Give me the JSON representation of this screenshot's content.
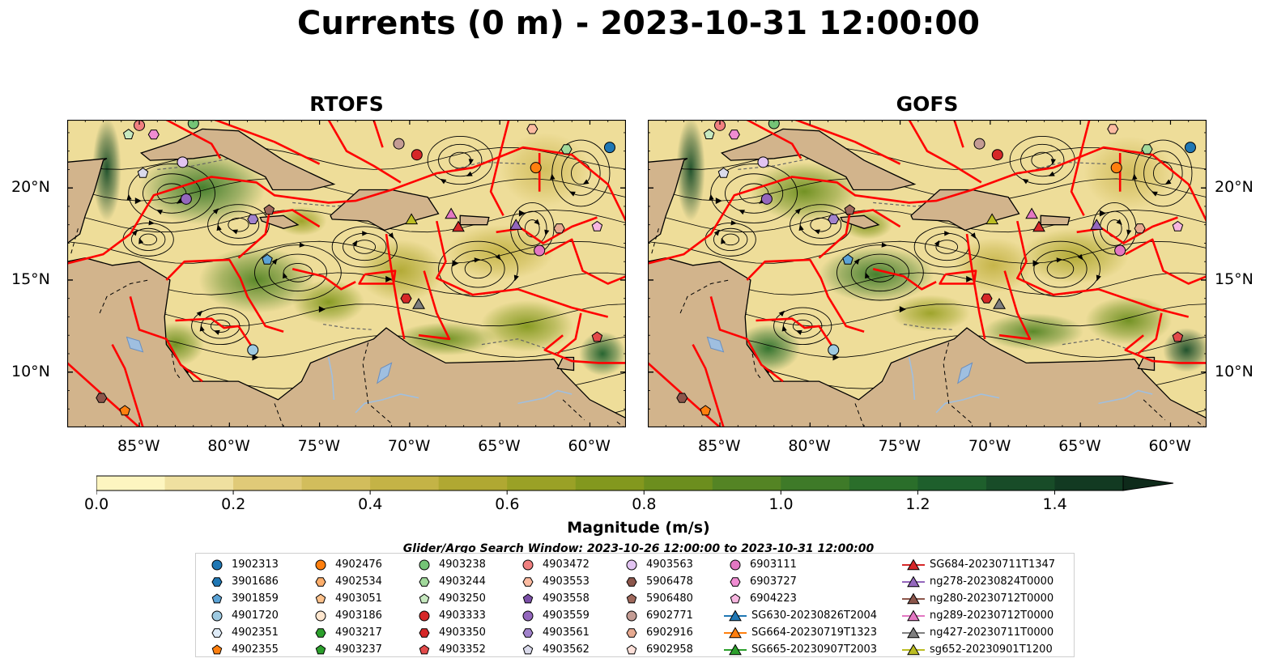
{
  "title": "Currents (0 m) - 2023-10-31 12:00:00",
  "panels": [
    {
      "title": "RTOFS"
    },
    {
      "title": "GOFS"
    }
  ],
  "axes": {
    "x_ticks": [
      "85°W",
      "80°W",
      "75°W",
      "70°W",
      "65°W",
      "60°W"
    ],
    "x_values": [
      -85,
      -80,
      -75,
      -70,
      -65,
      -60
    ],
    "y_ticks": [
      "20°N",
      "15°N",
      "10°N"
    ],
    "y_values": [
      20,
      15,
      10
    ],
    "xlim": [
      -89,
      -58
    ],
    "ylim": [
      7,
      23.7
    ]
  },
  "colorbar": {
    "label": "Magnitude (m/s)",
    "ticks": [
      "0.0",
      "0.2",
      "0.4",
      "0.6",
      "0.8",
      "1.0",
      "1.2",
      "1.4"
    ],
    "tick_values": [
      0.0,
      0.2,
      0.4,
      0.6,
      0.8,
      1.0,
      1.2,
      1.4
    ],
    "range": [
      0.0,
      1.5
    ],
    "extend": "max",
    "colors": [
      "#fdf5c0",
      "#efe0a0",
      "#e0ca78",
      "#d2bd5c",
      "#c4b346",
      "#b0a832",
      "#9aa126",
      "#83981e",
      "#6c8e1e",
      "#548424",
      "#3e7a28",
      "#2a6e2a",
      "#1e5f2c",
      "#184c28",
      "#123a22",
      "#0e2a1a"
    ]
  },
  "search_window": "Glider/Argo Search Window: 2023-10-26 12:00:00 to 2023-10-31 12:00:00",
  "chart_data": {
    "type": "map",
    "variable": "Currents (0 m)",
    "units": "m/s",
    "legend": [
      {
        "name": "1902313",
        "marker": "circle",
        "color": "#1f77b4"
      },
      {
        "name": "3901686",
        "marker": "hexagon",
        "color": "#1f77b4"
      },
      {
        "name": "3901859",
        "marker": "pentagon",
        "color": "#5ba3d6"
      },
      {
        "name": "4901720",
        "marker": "circle",
        "color": "#9ecae1"
      },
      {
        "name": "4902351",
        "marker": "hexagon",
        "color": "#deebf7"
      },
      {
        "name": "4902355",
        "marker": "pentagon",
        "color": "#ff7f0e"
      },
      {
        "name": "4902476",
        "marker": "circle",
        "color": "#ff7f0e"
      },
      {
        "name": "4902534",
        "marker": "hexagon",
        "color": "#fdae6b"
      },
      {
        "name": "4903051",
        "marker": "pentagon",
        "color": "#fdc28c"
      },
      {
        "name": "4903186",
        "marker": "circle",
        "color": "#fee6ce"
      },
      {
        "name": "4903217",
        "marker": "hexagon",
        "color": "#2ca02c"
      },
      {
        "name": "4903237",
        "marker": "pentagon",
        "color": "#2ca02c"
      },
      {
        "name": "4903238",
        "marker": "circle",
        "color": "#74c476"
      },
      {
        "name": "4903244",
        "marker": "hexagon",
        "color": "#a1d99b"
      },
      {
        "name": "4903250",
        "marker": "pentagon",
        "color": "#c7e9c0"
      },
      {
        "name": "4903333",
        "marker": "circle",
        "color": "#d62728"
      },
      {
        "name": "4903350",
        "marker": "hexagon",
        "color": "#d62728"
      },
      {
        "name": "4903352",
        "marker": "pentagon",
        "color": "#e34a4a"
      },
      {
        "name": "4903472",
        "marker": "circle",
        "color": "#f08080"
      },
      {
        "name": "4903553",
        "marker": "hexagon",
        "color": "#fcbba1"
      },
      {
        "name": "4903558",
        "marker": "pentagon",
        "color": "#7b4fa8"
      },
      {
        "name": "4903559",
        "marker": "circle",
        "color": "#9467bd"
      },
      {
        "name": "4903561",
        "marker": "hexagon",
        "color": "#a182cc"
      },
      {
        "name": "4903562",
        "marker": "pentagon",
        "color": "#dadaeb"
      },
      {
        "name": "4903563",
        "marker": "circle",
        "color": "#e2c4f2"
      },
      {
        "name": "5906478",
        "marker": "hexagon",
        "color": "#8c564b"
      },
      {
        "name": "5906480",
        "marker": "pentagon",
        "color": "#a0695c"
      },
      {
        "name": "6902771",
        "marker": "circle",
        "color": "#c49c94"
      },
      {
        "name": "6902916",
        "marker": "hexagon",
        "color": "#e6a990"
      },
      {
        "name": "6902958",
        "marker": "pentagon",
        "color": "#fde0d9"
      },
      {
        "name": "6903111",
        "marker": "circle",
        "color": "#e377c2"
      },
      {
        "name": "6903727",
        "marker": "hexagon",
        "color": "#f08cd2"
      },
      {
        "name": "6904223",
        "marker": "pentagon",
        "color": "#f7b6e0"
      },
      {
        "name": "SG630-20230826T2004",
        "marker": "triangle",
        "color": "#1f77b4"
      },
      {
        "name": "SG664-20230719T1323",
        "marker": "triangle",
        "color": "#ff7f0e"
      },
      {
        "name": "SG665-20230907T2003",
        "marker": "triangle",
        "color": "#2ca02c"
      },
      {
        "name": "SG684-20230711T1347",
        "marker": "triangle",
        "color": "#d62728"
      },
      {
        "name": "ng278-20230824T0000",
        "marker": "triangle",
        "color": "#9467bd"
      },
      {
        "name": "ng280-20230712T0000",
        "marker": "triangle",
        "color": "#8c564b"
      },
      {
        "name": "ng289-20230712T0000",
        "marker": "triangle",
        "color": "#e377c2"
      },
      {
        "name": "ng427-20230711T0000",
        "marker": "triangle",
        "color": "#7f7f7f"
      },
      {
        "name": "sg652-20230901T1200",
        "marker": "triangle",
        "color": "#bcbd22"
      }
    ],
    "platform_positions": [
      {
        "id": "1902313",
        "lon": -58.9,
        "lat": 22.2
      },
      {
        "id": "4902476",
        "lon": -63.0,
        "lat": 21.1
      },
      {
        "id": "4903238",
        "lon": -82.0,
        "lat": 23.5
      },
      {
        "id": "4903244",
        "lon": -61.3,
        "lat": 22.1
      },
      {
        "id": "4903250",
        "lon": -85.6,
        "lat": 22.9
      },
      {
        "id": "4903333",
        "lon": -69.6,
        "lat": 21.8
      },
      {
        "id": "4903472",
        "lon": -85.0,
        "lat": 23.4
      },
      {
        "id": "4903553",
        "lon": -63.2,
        "lat": 23.2
      },
      {
        "id": "4903562",
        "lon": -84.8,
        "lat": 20.8
      },
      {
        "id": "4903563",
        "lon": -82.6,
        "lat": 21.4
      },
      {
        "id": "4903559",
        "lon": -82.4,
        "lat": 19.4
      },
      {
        "id": "4903561",
        "lon": -78.7,
        "lat": 18.3
      },
      {
        "id": "5906480",
        "lon": -77.8,
        "lat": 18.8
      },
      {
        "id": "6902771",
        "lon": -70.6,
        "lat": 22.4
      },
      {
        "id": "6902916",
        "lon": -61.7,
        "lat": 17.8
      },
      {
        "id": "6903727",
        "lon": -84.2,
        "lat": 22.9
      },
      {
        "id": "6904223",
        "lon": -59.6,
        "lat": 17.9
      },
      {
        "id": "3901859",
        "lon": -77.9,
        "lat": 16.1
      },
      {
        "id": "4903350",
        "lon": -70.2,
        "lat": 14.0
      },
      {
        "id": "6903111",
        "lon": -62.8,
        "lat": 16.6
      },
      {
        "id": "4901720",
        "lon": -78.7,
        "lat": 11.2
      },
      {
        "id": "4902355",
        "lon": -85.8,
        "lat": 7.9
      },
      {
        "id": "5906478",
        "lon": -87.1,
        "lat": 8.6
      },
      {
        "id": "4903352",
        "lon": -59.6,
        "lat": 11.9
      },
      {
        "id": "ng289-20230712T0000",
        "lon": -67.7,
        "lat": 18.6
      },
      {
        "id": "SG684-20230711T1347",
        "lon": -67.3,
        "lat": 17.9
      },
      {
        "id": "ng278-20230824T0000",
        "lon": -64.1,
        "lat": 18.0
      },
      {
        "id": "sg652-20230901T1200",
        "lon": -69.9,
        "lat": 18.3
      },
      {
        "id": "ng427-20230711T0000",
        "lon": -69.5,
        "lat": 13.7
      }
    ]
  }
}
